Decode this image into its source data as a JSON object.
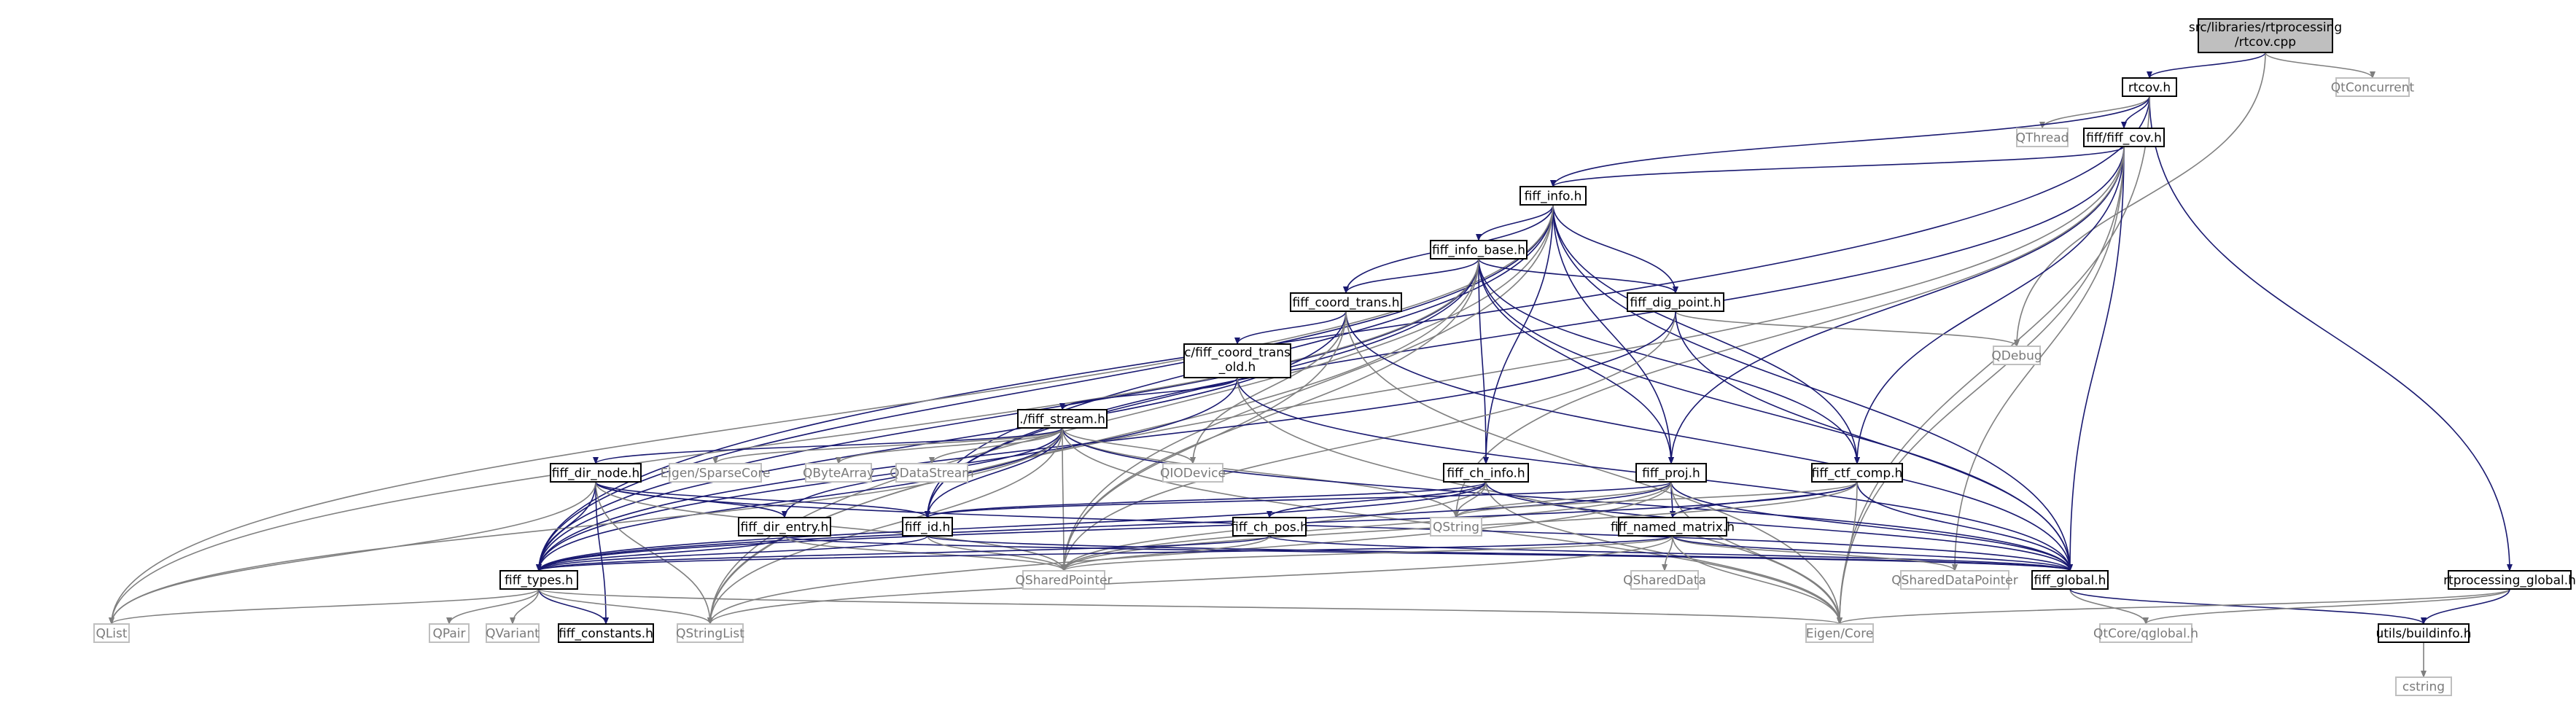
{
  "graph": {
    "nodes": [
      {
        "id": "n0",
        "lines": [
          "src/libraries/rtprocessing",
          "/rtcov.cpp"
        ],
        "style": "root"
      },
      {
        "id": "n1",
        "lines": [
          "rtcov.h"
        ],
        "style": "normal"
      },
      {
        "id": "n2",
        "lines": [
          "QtConcurrent"
        ],
        "style": "gray"
      },
      {
        "id": "n3",
        "lines": [
          "QThread"
        ],
        "style": "gray"
      },
      {
        "id": "n4",
        "lines": [
          "fiff/fiff_cov.h"
        ],
        "style": "normal"
      },
      {
        "id": "n5",
        "lines": [
          "fiff_info.h"
        ],
        "style": "normal"
      },
      {
        "id": "n6",
        "lines": [
          "fiff_info_base.h"
        ],
        "style": "normal"
      },
      {
        "id": "n7",
        "lines": [
          "fiff_coord_trans.h"
        ],
        "style": "normal"
      },
      {
        "id": "n8",
        "lines": [
          "fiff_dig_point.h"
        ],
        "style": "normal"
      },
      {
        "id": "n9",
        "lines": [
          "QDebug"
        ],
        "style": "gray"
      },
      {
        "id": "n10",
        "lines": [
          "c/fiff_coord_trans",
          "_old.h"
        ],
        "style": "normal"
      },
      {
        "id": "n11",
        "lines": [
          "./fiff_stream.h"
        ],
        "style": "normal"
      },
      {
        "id": "n12",
        "lines": [
          "Eigen/SparseCore"
        ],
        "style": "gray"
      },
      {
        "id": "n13",
        "lines": [
          "QByteArray"
        ],
        "style": "gray"
      },
      {
        "id": "n14",
        "lines": [
          "QDataStream"
        ],
        "style": "gray"
      },
      {
        "id": "n15",
        "lines": [
          "QIODevice"
        ],
        "style": "gray"
      },
      {
        "id": "n16",
        "lines": [
          "fiff_dir_node.h"
        ],
        "style": "normal"
      },
      {
        "id": "n17",
        "lines": [
          "fiff_ch_info.h"
        ],
        "style": "normal"
      },
      {
        "id": "n18",
        "lines": [
          "fiff_proj.h"
        ],
        "style": "normal"
      },
      {
        "id": "n19",
        "lines": [
          "fiff_ctf_comp.h"
        ],
        "style": "normal"
      },
      {
        "id": "n20",
        "lines": [
          "fiff_dir_entry.h"
        ],
        "style": "normal"
      },
      {
        "id": "n21",
        "lines": [
          "fiff_id.h"
        ],
        "style": "normal"
      },
      {
        "id": "n22",
        "lines": [
          "fiff_ch_pos.h"
        ],
        "style": "normal"
      },
      {
        "id": "n23",
        "lines": [
          "QString"
        ],
        "style": "gray"
      },
      {
        "id": "n24",
        "lines": [
          "fiff_named_matrix.h"
        ],
        "style": "normal"
      },
      {
        "id": "n25",
        "lines": [
          "fiff_types.h"
        ],
        "style": "normal"
      },
      {
        "id": "n26",
        "lines": [
          "QSharedPointer"
        ],
        "style": "gray"
      },
      {
        "id": "n27",
        "lines": [
          "QSharedData"
        ],
        "style": "gray"
      },
      {
        "id": "n28",
        "lines": [
          "QSharedDataPointer"
        ],
        "style": "gray"
      },
      {
        "id": "n29",
        "lines": [
          "fiff_global.h"
        ],
        "style": "normal"
      },
      {
        "id": "n30",
        "lines": [
          "rtprocessing_global.h"
        ],
        "style": "normal"
      },
      {
        "id": "n31",
        "lines": [
          "QList"
        ],
        "style": "gray"
      },
      {
        "id": "n32",
        "lines": [
          "QPair"
        ],
        "style": "gray"
      },
      {
        "id": "n33",
        "lines": [
          "QVariant"
        ],
        "style": "gray"
      },
      {
        "id": "n34",
        "lines": [
          "fiff_constants.h"
        ],
        "style": "normal"
      },
      {
        "id": "n35",
        "lines": [
          "QStringList"
        ],
        "style": "gray"
      },
      {
        "id": "n36",
        "lines": [
          "Eigen/Core"
        ],
        "style": "gray"
      },
      {
        "id": "n37",
        "lines": [
          "QtCore/qglobal.h"
        ],
        "style": "gray"
      },
      {
        "id": "n38",
        "lines": [
          "utils/buildinfo.h"
        ],
        "style": "normal"
      },
      {
        "id": "n39",
        "lines": [
          "cstring"
        ],
        "style": "gray"
      }
    ],
    "edges": [
      [
        "n0",
        "n1"
      ],
      [
        "n0",
        "n2"
      ],
      [
        "n0",
        "n9"
      ],
      [
        "n1",
        "n3"
      ],
      [
        "n1",
        "n4"
      ],
      [
        "n1",
        "n5"
      ],
      [
        "n1",
        "n25"
      ],
      [
        "n1",
        "n30"
      ],
      [
        "n1",
        "n36"
      ],
      [
        "n4",
        "n5"
      ],
      [
        "n4",
        "n18"
      ],
      [
        "n4",
        "n19"
      ],
      [
        "n4",
        "n21"
      ],
      [
        "n4",
        "n23"
      ],
      [
        "n4",
        "n28"
      ],
      [
        "n4",
        "n29"
      ],
      [
        "n4",
        "n35"
      ],
      [
        "n4",
        "n36"
      ],
      [
        "n5",
        "n6"
      ],
      [
        "n5",
        "n7"
      ],
      [
        "n5",
        "n8"
      ],
      [
        "n5",
        "n17"
      ],
      [
        "n5",
        "n18"
      ],
      [
        "n5",
        "n19"
      ],
      [
        "n5",
        "n21"
      ],
      [
        "n5",
        "n25"
      ],
      [
        "n5",
        "n26"
      ],
      [
        "n5",
        "n29"
      ],
      [
        "n5",
        "n31"
      ],
      [
        "n5",
        "n35"
      ],
      [
        "n6",
        "n7"
      ],
      [
        "n6",
        "n8"
      ],
      [
        "n6",
        "n17"
      ],
      [
        "n6",
        "n18"
      ],
      [
        "n6",
        "n19"
      ],
      [
        "n6",
        "n21"
      ],
      [
        "n6",
        "n25"
      ],
      [
        "n6",
        "n26"
      ],
      [
        "n6",
        "n29"
      ],
      [
        "n6",
        "n31"
      ],
      [
        "n6",
        "n35"
      ],
      [
        "n7",
        "n10"
      ],
      [
        "n7",
        "n15"
      ],
      [
        "n7",
        "n25"
      ],
      [
        "n7",
        "n26"
      ],
      [
        "n7",
        "n29"
      ],
      [
        "n7",
        "n36"
      ],
      [
        "n8",
        "n9"
      ],
      [
        "n8",
        "n25"
      ],
      [
        "n8",
        "n26"
      ],
      [
        "n8",
        "n29"
      ],
      [
        "n10",
        "n11"
      ],
      [
        "n10",
        "n25"
      ],
      [
        "n10",
        "n29"
      ],
      [
        "n10",
        "n36"
      ],
      [
        "n11",
        "n12"
      ],
      [
        "n11",
        "n13"
      ],
      [
        "n11",
        "n14"
      ],
      [
        "n11",
        "n15"
      ],
      [
        "n11",
        "n16"
      ],
      [
        "n11",
        "n20"
      ],
      [
        "n11",
        "n21"
      ],
      [
        "n11",
        "n23"
      ],
      [
        "n11",
        "n25"
      ],
      [
        "n11",
        "n26"
      ],
      [
        "n11",
        "n29"
      ],
      [
        "n11",
        "n31"
      ],
      [
        "n11",
        "n35"
      ],
      [
        "n11",
        "n36"
      ],
      [
        "n16",
        "n20"
      ],
      [
        "n16",
        "n21"
      ],
      [
        "n16",
        "n25"
      ],
      [
        "n16",
        "n26"
      ],
      [
        "n16",
        "n29"
      ],
      [
        "n16",
        "n31"
      ],
      [
        "n16",
        "n34"
      ],
      [
        "n16",
        "n35"
      ],
      [
        "n17",
        "n21"
      ],
      [
        "n17",
        "n22"
      ],
      [
        "n17",
        "n23"
      ],
      [
        "n17",
        "n25"
      ],
      [
        "n17",
        "n26"
      ],
      [
        "n17",
        "n29"
      ],
      [
        "n17",
        "n36"
      ],
      [
        "n18",
        "n21"
      ],
      [
        "n18",
        "n23"
      ],
      [
        "n18",
        "n24"
      ],
      [
        "n18",
        "n25"
      ],
      [
        "n18",
        "n26"
      ],
      [
        "n18",
        "n29"
      ],
      [
        "n18",
        "n35"
      ],
      [
        "n18",
        "n36"
      ],
      [
        "n19",
        "n23"
      ],
      [
        "n19",
        "n24"
      ],
      [
        "n19",
        "n25"
      ],
      [
        "n19",
        "n26"
      ],
      [
        "n19",
        "n29"
      ],
      [
        "n19",
        "n36"
      ],
      [
        "n20",
        "n25"
      ],
      [
        "n20",
        "n26"
      ],
      [
        "n20",
        "n29"
      ],
      [
        "n21",
        "n25"
      ],
      [
        "n21",
        "n26"
      ],
      [
        "n21",
        "n29"
      ],
      [
        "n22",
        "n25"
      ],
      [
        "n22",
        "n26"
      ],
      [
        "n22",
        "n29"
      ],
      [
        "n24",
        "n25"
      ],
      [
        "n24",
        "n26"
      ],
      [
        "n24",
        "n27"
      ],
      [
        "n24",
        "n28"
      ],
      [
        "n24",
        "n29"
      ],
      [
        "n24",
        "n35"
      ],
      [
        "n24",
        "n36"
      ],
      [
        "n25",
        "n31"
      ],
      [
        "n25",
        "n32"
      ],
      [
        "n25",
        "n33"
      ],
      [
        "n25",
        "n34"
      ],
      [
        "n25",
        "n35"
      ],
      [
        "n25",
        "n36"
      ],
      [
        "n29",
        "n37"
      ],
      [
        "n29",
        "n38"
      ],
      [
        "n30",
        "n36"
      ],
      [
        "n30",
        "n37"
      ],
      [
        "n30",
        "n38"
      ],
      [
        "n38",
        "n39"
      ]
    ]
  }
}
